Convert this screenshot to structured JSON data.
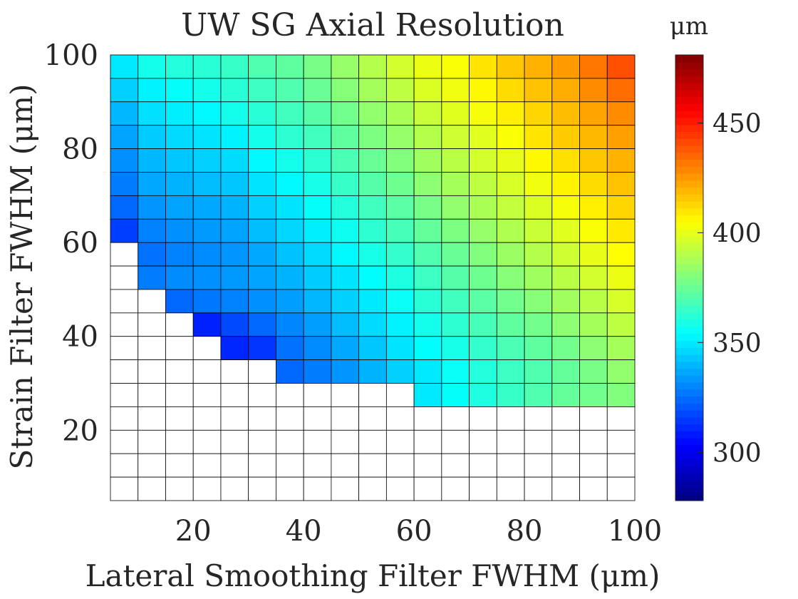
{
  "chart_data": {
    "type": "heatmap",
    "title": "UW SG Axial Resolution",
    "xlabel": "Lateral Smoothing Filter FWHM (μm)",
    "ylabel": "Strain Filter FWHM (μm)",
    "colorbar_label": "μm",
    "colormap": "jet",
    "color_range": [
      278,
      481
    ],
    "colorbar_ticks": [
      300,
      350,
      400,
      450
    ],
    "xlim": [
      5,
      100
    ],
    "ylim": [
      5,
      100
    ],
    "xticks": [
      20,
      40,
      60,
      80,
      100
    ],
    "yticks": [
      20,
      40,
      60,
      80,
      100
    ],
    "grid": true,
    "missing_color": "#ffffff",
    "x": [
      7.5,
      12.5,
      17.5,
      22.5,
      27.5,
      32.5,
      37.5,
      42.5,
      47.5,
      52.5,
      57.5,
      62.5,
      67.5,
      72.5,
      77.5,
      82.5,
      87.5,
      92.5,
      97.5
    ],
    "y": [
      97.5,
      92.5,
      87.5,
      82.5,
      77.5,
      72.5,
      67.5,
      62.5,
      57.5,
      52.5,
      47.5,
      42.5,
      37.5,
      32.5,
      27.5,
      22.5,
      17.5,
      12.5,
      7.5
    ],
    "z": [
      [
        350,
        358,
        361,
        362,
        365,
        370,
        373,
        378,
        384,
        390,
        396,
        401,
        404,
        410,
        416,
        420,
        425,
        432,
        440
      ],
      [
        345,
        352,
        355,
        358,
        362,
        366,
        370,
        375,
        381,
        387,
        392,
        398,
        402,
        406,
        412,
        417,
        421,
        428,
        434
      ],
      [
        340,
        348,
        351,
        353,
        358,
        362,
        367,
        371,
        377,
        383,
        388,
        394,
        399,
        403,
        408,
        413,
        418,
        423,
        428
      ],
      [
        336,
        344,
        347,
        349,
        352,
        358,
        363,
        367,
        373,
        379,
        384,
        390,
        395,
        399,
        404,
        410,
        415,
        419,
        424
      ],
      [
        332,
        340,
        343,
        345,
        347,
        353,
        358,
        363,
        369,
        375,
        380,
        386,
        391,
        396,
        400,
        406,
        411,
        416,
        420
      ],
      [
        328,
        337,
        339,
        341,
        343,
        349,
        353,
        359,
        365,
        371,
        376,
        382,
        387,
        392,
        397,
        402,
        407,
        412,
        417
      ],
      [
        324,
        333,
        336,
        337,
        339,
        345,
        349,
        355,
        361,
        367,
        372,
        378,
        383,
        388,
        393,
        398,
        403,
        408,
        413
      ],
      [
        316,
        329,
        332,
        334,
        336,
        341,
        346,
        351,
        357,
        363,
        368,
        374,
        379,
        384,
        389,
        394,
        399,
        404,
        409
      ],
      [
        null,
        326,
        329,
        331,
        333,
        337,
        342,
        347,
        353,
        359,
        364,
        370,
        375,
        380,
        385,
        390,
        395,
        400,
        405
      ],
      [
        null,
        328,
        331,
        332,
        334,
        336,
        339,
        344,
        349,
        354,
        360,
        366,
        371,
        376,
        381,
        386,
        391,
        396,
        401
      ],
      [
        null,
        null,
        324,
        327,
        329,
        332,
        335,
        340,
        345,
        350,
        356,
        362,
        367,
        372,
        377,
        381,
        386,
        391,
        397
      ],
      [
        null,
        null,
        null,
        310,
        318,
        324,
        330,
        335,
        341,
        347,
        352,
        358,
        363,
        368,
        373,
        377,
        382,
        387,
        392
      ],
      [
        null,
        null,
        null,
        null,
        311,
        314,
        326,
        331,
        337,
        343,
        349,
        354,
        359,
        364,
        369,
        373,
        377,
        382,
        387
      ],
      [
        null,
        null,
        null,
        null,
        null,
        null,
        324,
        328,
        333,
        339,
        345,
        350,
        356,
        361,
        366,
        370,
        374,
        378,
        383
      ],
      [
        null,
        null,
        null,
        null,
        null,
        null,
        null,
        null,
        null,
        null,
        null,
        350,
        355,
        360,
        365,
        370,
        374,
        377,
        380
      ],
      [
        null,
        null,
        null,
        null,
        null,
        null,
        null,
        null,
        null,
        null,
        null,
        null,
        null,
        null,
        null,
        null,
        null,
        null,
        null
      ],
      [
        null,
        null,
        null,
        null,
        null,
        null,
        null,
        null,
        null,
        null,
        null,
        null,
        null,
        null,
        null,
        null,
        null,
        null,
        null
      ],
      [
        null,
        null,
        null,
        null,
        null,
        null,
        null,
        null,
        null,
        null,
        null,
        null,
        null,
        null,
        null,
        null,
        null,
        null,
        null
      ],
      [
        null,
        null,
        null,
        null,
        null,
        null,
        null,
        null,
        null,
        null,
        null,
        null,
        null,
        null,
        null,
        null,
        null,
        null,
        null
      ]
    ]
  }
}
